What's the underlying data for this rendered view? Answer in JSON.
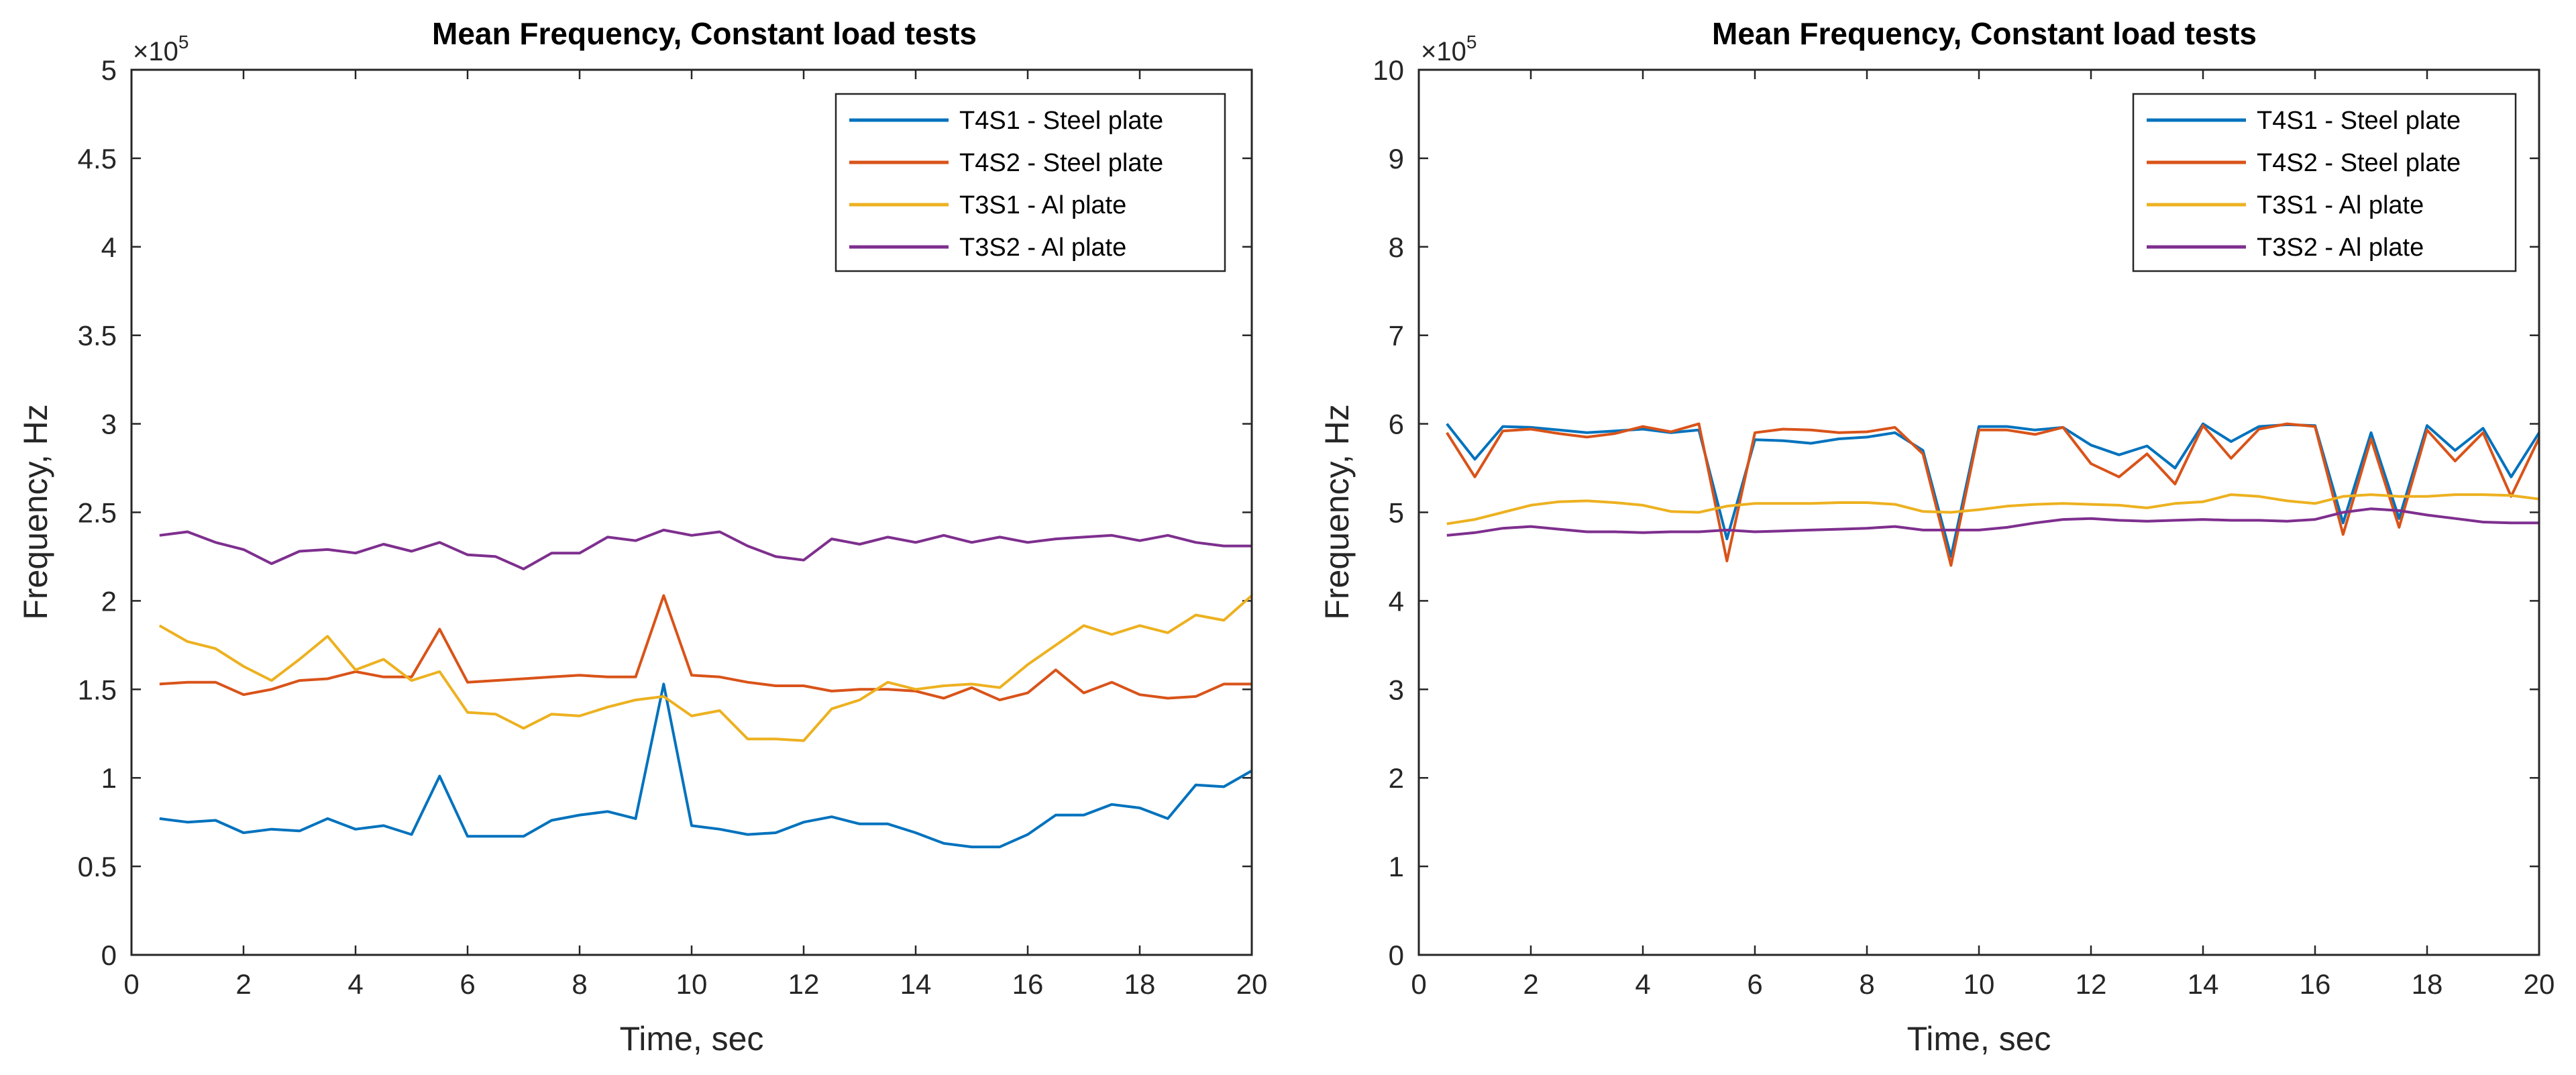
{
  "chart_data": [
    {
      "type": "line",
      "title": "Mean Frequency, Constant load tests",
      "xlabel": "Time, sec",
      "ylabel": "Frequency, Hz",
      "xlim": [
        0,
        20
      ],
      "ylim": [
        0,
        500000
      ],
      "xticks": [
        0,
        2,
        4,
        6,
        8,
        10,
        12,
        14,
        16,
        18,
        20
      ],
      "yticks": [
        0,
        50000,
        100000,
        150000,
        200000,
        250000,
        300000,
        350000,
        400000,
        450000,
        500000
      ],
      "ytick_labels": [
        "0",
        "0.5",
        "1",
        "1.5",
        "2",
        "2.5",
        "3",
        "3.5",
        "4",
        "4.5",
        "5"
      ],
      "exponent_label": "×10",
      "exponent_power": "5",
      "legend_position": "top-right",
      "x": [
        0.5,
        1,
        1.5,
        2,
        2.5,
        3,
        3.5,
        4,
        4.5,
        5,
        5.5,
        6,
        6.5,
        7,
        7.5,
        8,
        8.5,
        9,
        9.5,
        10,
        10.5,
        11,
        11.5,
        12,
        12.5,
        13,
        13.5,
        14,
        14.5,
        15,
        15.5,
        16,
        16.5,
        17,
        17.5,
        18,
        18.5,
        19,
        19.5,
        20
      ],
      "series": [
        {
          "name": "T4S1 - Steel plate",
          "color": "#0072BD",
          "values": [
            77000,
            75000,
            76000,
            69000,
            71000,
            70000,
            77000,
            71000,
            73000,
            68000,
            101000,
            67000,
            67000,
            67000,
            76000,
            79000,
            81000,
            77000,
            153000,
            73000,
            71000,
            68000,
            69000,
            75000,
            78000,
            74000,
            74000,
            69000,
            63000,
            61000,
            61000,
            68000,
            79000,
            79000,
            85000,
            83000,
            77000,
            96000,
            95000,
            104000
          ]
        },
        {
          "name": "T4S2 - Steel plate",
          "color": "#D95319",
          "values": [
            153000,
            154000,
            154000,
            147000,
            150000,
            155000,
            156000,
            160000,
            157000,
            157000,
            184000,
            154000,
            155000,
            156000,
            157000,
            158000,
            157000,
            157000,
            203000,
            158000,
            157000,
            154000,
            152000,
            152000,
            149000,
            150000,
            150000,
            149000,
            145000,
            151000,
            144000,
            148000,
            161000,
            148000,
            154000,
            147000,
            145000,
            146000,
            153000,
            153000
          ]
        },
        {
          "name": "T3S1 - Al plate",
          "color": "#EDB120",
          "values": [
            186000,
            177000,
            173000,
            163000,
            155000,
            167000,
            180000,
            161000,
            167000,
            155000,
            160000,
            137000,
            136000,
            128000,
            136000,
            135000,
            140000,
            144000,
            146000,
            135000,
            138000,
            122000,
            122000,
            121000,
            139000,
            144000,
            154000,
            150000,
            152000,
            153000,
            151000,
            164000,
            175000,
            186000,
            181000,
            186000,
            182000,
            192000,
            189000,
            203000
          ]
        },
        {
          "name": "T3S2 - Al plate",
          "color": "#7E2F8E",
          "values": [
            237000,
            239000,
            233000,
            229000,
            221000,
            228000,
            229000,
            227000,
            232000,
            228000,
            233000,
            226000,
            225000,
            218000,
            227000,
            227000,
            236000,
            234000,
            240000,
            237000,
            239000,
            231000,
            225000,
            223000,
            235000,
            232000,
            236000,
            233000,
            237000,
            233000,
            236000,
            233000,
            235000,
            236000,
            237000,
            234000,
            237000,
            233000,
            231000,
            231000
          ]
        }
      ]
    },
    {
      "type": "line",
      "title": "Mean Frequency, Constant load tests",
      "xlabel": "Time, sec",
      "ylabel": "Frequency, Hz",
      "xlim": [
        0,
        20
      ],
      "ylim": [
        0,
        1000000
      ],
      "xticks": [
        0,
        2,
        4,
        6,
        8,
        10,
        12,
        14,
        16,
        18,
        20
      ],
      "yticks": [
        0,
        100000,
        200000,
        300000,
        400000,
        500000,
        600000,
        700000,
        800000,
        900000,
        1000000
      ],
      "ytick_labels": [
        "0",
        "1",
        "2",
        "3",
        "4",
        "5",
        "6",
        "7",
        "8",
        "9",
        "10"
      ],
      "exponent_label": "×10",
      "exponent_power": "5",
      "legend_position": "top-right",
      "x": [
        0.5,
        1,
        1.5,
        2,
        2.5,
        3,
        3.5,
        4,
        4.5,
        5,
        5.5,
        6,
        6.5,
        7,
        7.5,
        8,
        8.5,
        9,
        9.5,
        10,
        10.5,
        11,
        11.5,
        12,
        12.5,
        13,
        13.5,
        14,
        14.5,
        15,
        15.5,
        16,
        16.5,
        17,
        17.5,
        18,
        18.5,
        19,
        19.5,
        20
      ],
      "series": [
        {
          "name": "T4S1 - Steel plate",
          "color": "#0072BD",
          "values": [
            600000,
            560000,
            597000,
            596000,
            593000,
            590000,
            592000,
            594000,
            590000,
            593000,
            470000,
            582000,
            581000,
            578000,
            583000,
            585000,
            590000,
            570000,
            450000,
            597000,
            597000,
            593000,
            596000,
            576000,
            565000,
            575000,
            550000,
            600000,
            580000,
            597000,
            599000,
            598000,
            488000,
            590000,
            493000,
            598000,
            570000,
            595000,
            540000,
            590000
          ]
        },
        {
          "name": "T4S2 - Steel plate",
          "color": "#D95319",
          "values": [
            590000,
            540000,
            592000,
            594000,
            589000,
            585000,
            589000,
            597000,
            591000,
            600000,
            445000,
            590000,
            594000,
            593000,
            590000,
            591000,
            596000,
            566000,
            440000,
            593000,
            593000,
            588000,
            596000,
            555000,
            540000,
            566000,
            532000,
            598000,
            561000,
            594000,
            600000,
            597000,
            475000,
            583000,
            483000,
            593000,
            558000,
            590000,
            518000,
            584000
          ]
        },
        {
          "name": "T3S1 - Al plate",
          "color": "#EDB120",
          "values": [
            487000,
            492000,
            500000,
            508000,
            512000,
            513000,
            511000,
            508000,
            501000,
            500000,
            507000,
            510000,
            510000,
            510000,
            511000,
            511000,
            509000,
            501000,
            500000,
            503000,
            507000,
            509000,
            510000,
            509000,
            508000,
            505000,
            510000,
            512000,
            520000,
            518000,
            513000,
            510000,
            518000,
            520000,
            518000,
            518000,
            520000,
            520000,
            519000,
            515000
          ]
        },
        {
          "name": "T3S2 - Al plate",
          "color": "#7E2F8E",
          "values": [
            474000,
            477000,
            482000,
            484000,
            481000,
            478000,
            478000,
            477000,
            478000,
            478000,
            480000,
            478000,
            479000,
            480000,
            481000,
            482000,
            484000,
            480000,
            480000,
            480000,
            483000,
            488000,
            492000,
            493000,
            491000,
            490000,
            491000,
            492000,
            491000,
            491000,
            490000,
            492000,
            500000,
            504000,
            502000,
            497000,
            493000,
            489000,
            488000,
            488000
          ]
        }
      ]
    }
  ]
}
